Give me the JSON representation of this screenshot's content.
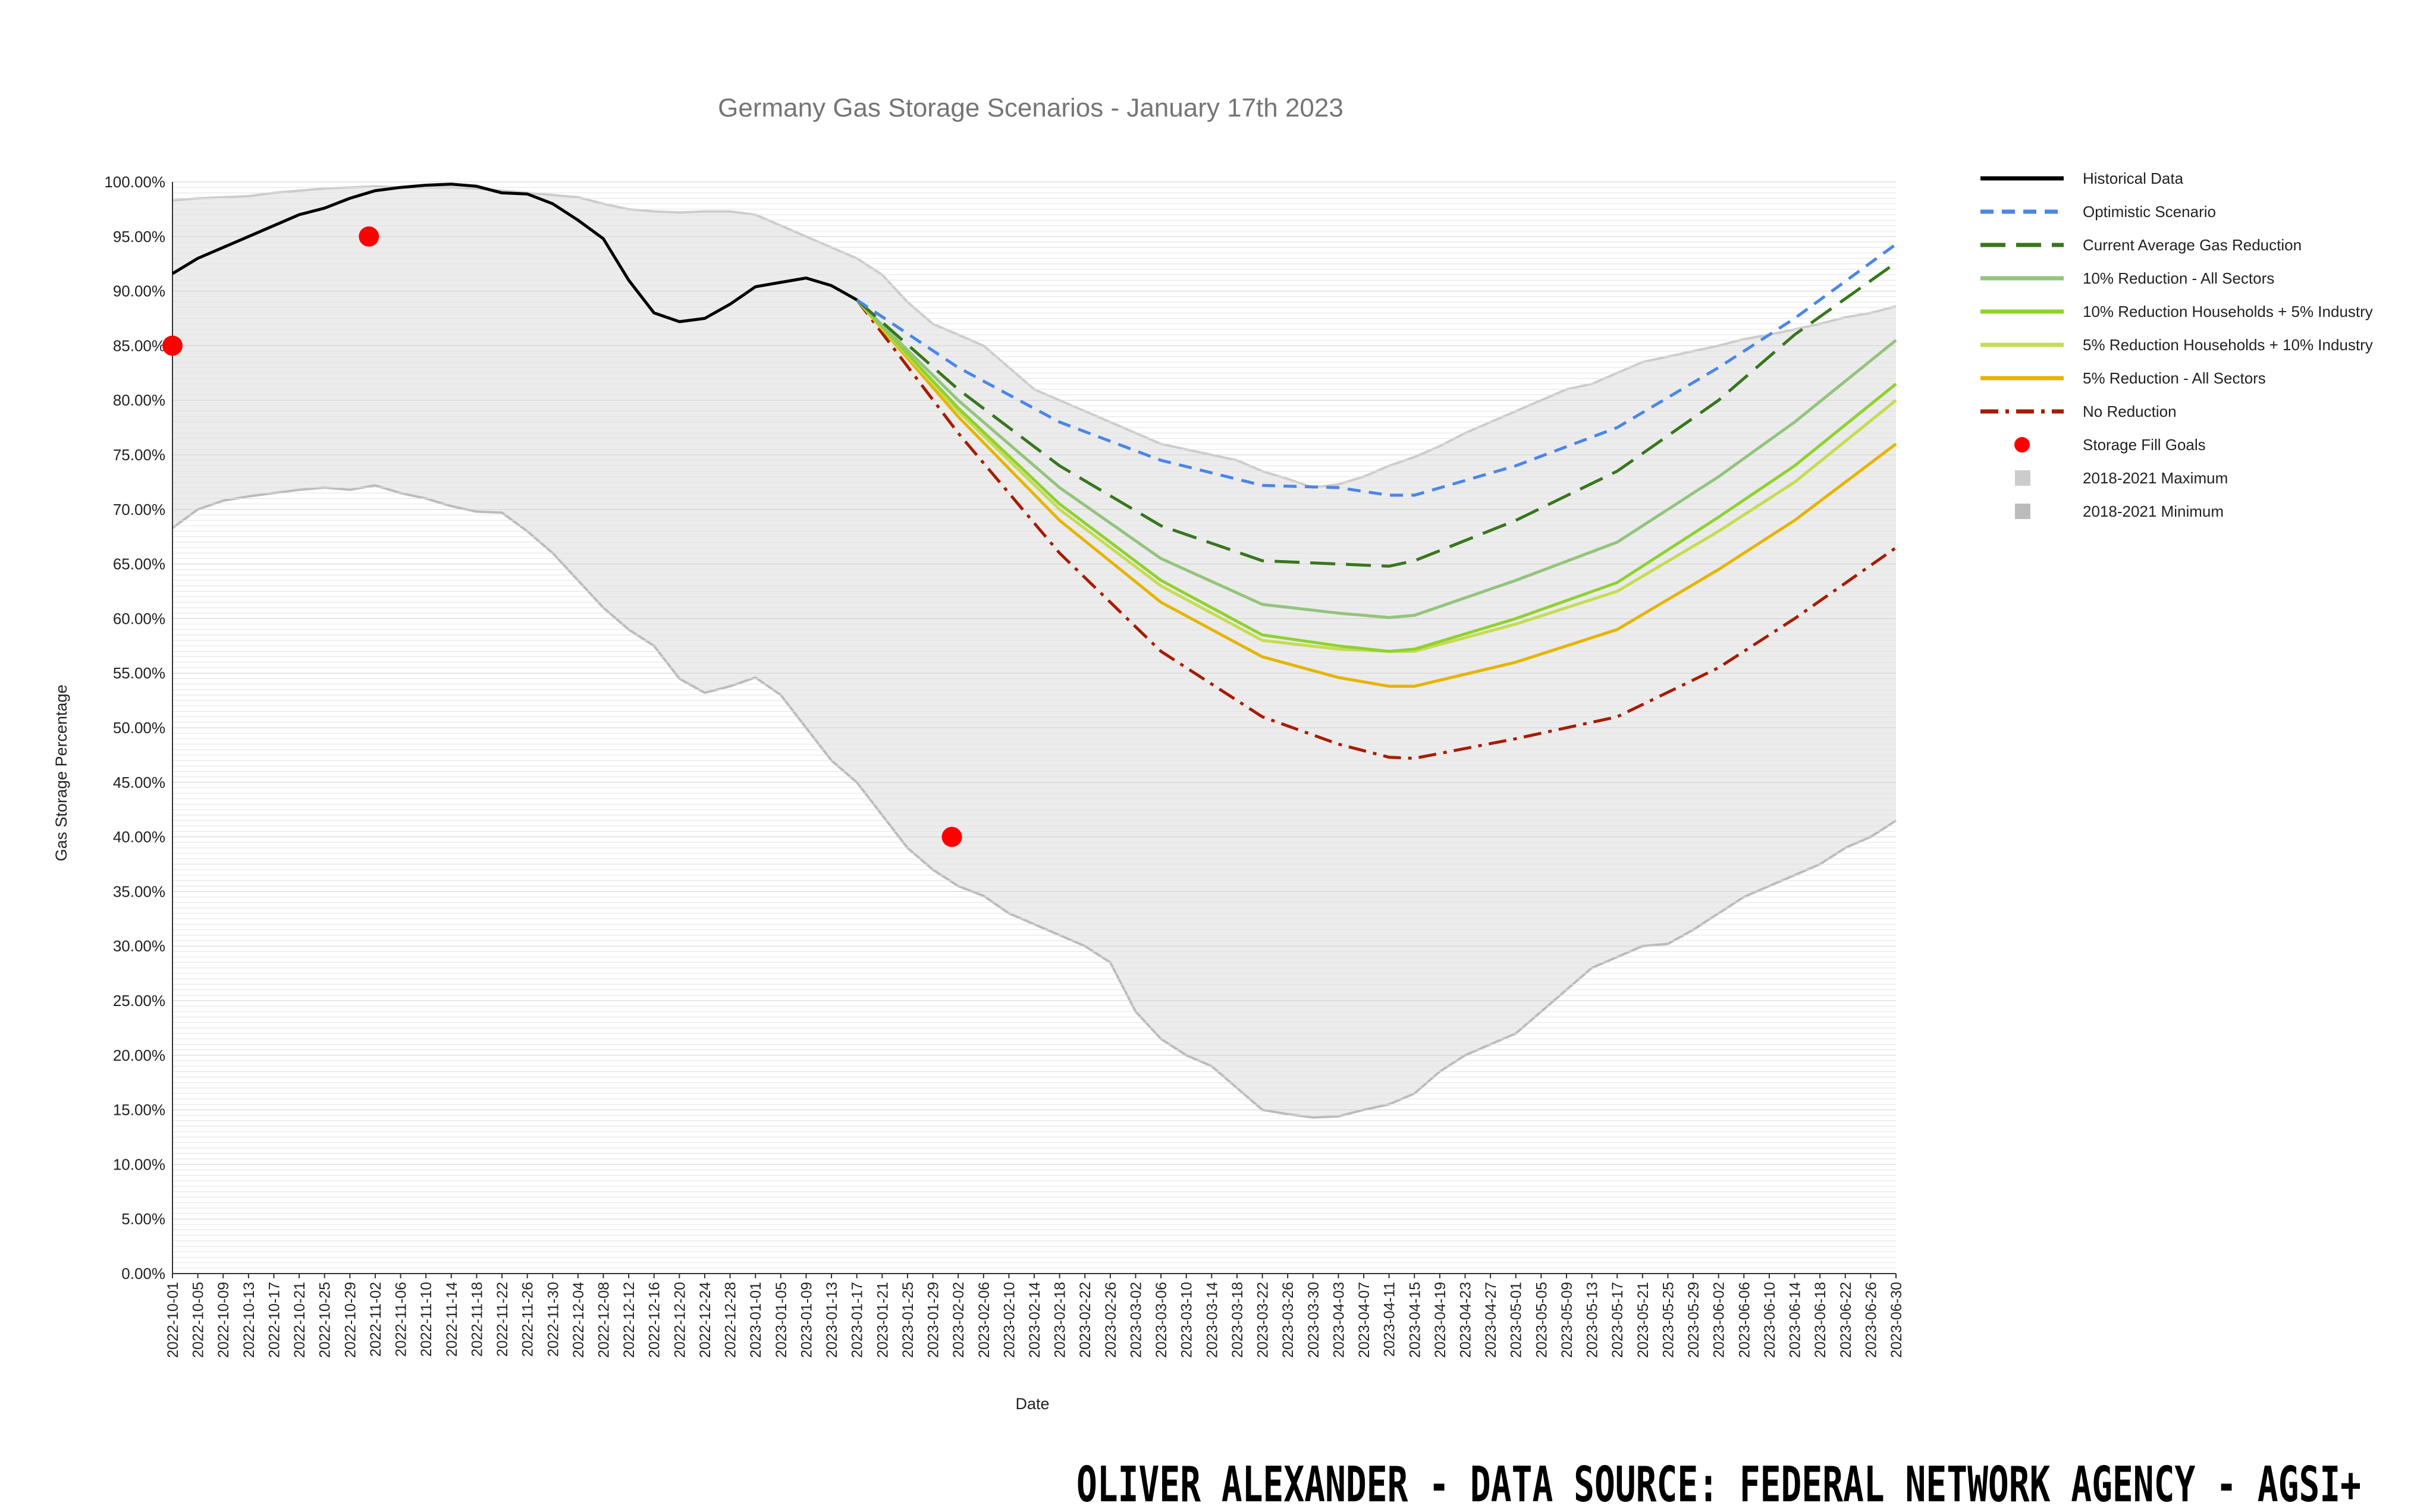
{
  "chart_data": {
    "type": "line",
    "title": "Germany Gas Storage Scenarios - January 17th 2023",
    "xlabel": "Date",
    "ylabel": "Gas Storage Percentage",
    "ylim": [
      0,
      100
    ],
    "yticks": [
      "0.00%",
      "5.00%",
      "10.00%",
      "15.00%",
      "20.00%",
      "25.00%",
      "30.00%",
      "35.00%",
      "40.00%",
      "45.00%",
      "50.00%",
      "55.00%",
      "60.00%",
      "65.00%",
      "70.00%",
      "75.00%",
      "80.00%",
      "85.00%",
      "90.00%",
      "95.00%",
      "100.00%"
    ],
    "xlim": [
      "2022-10-01",
      "2023-06-30"
    ],
    "xticks": [
      "2022-10-01",
      "2022-10-05",
      "2022-10-09",
      "2022-10-13",
      "2022-10-17",
      "2022-10-21",
      "2022-10-25",
      "2022-10-29",
      "2022-11-02",
      "2022-11-06",
      "2022-11-10",
      "2022-11-14",
      "2022-11-18",
      "2022-11-22",
      "2022-11-26",
      "2022-11-30",
      "2022-12-04",
      "2022-12-08",
      "2022-12-12",
      "2022-12-16",
      "2022-12-20",
      "2022-12-24",
      "2022-12-28",
      "2023-01-01",
      "2023-01-05",
      "2023-01-09",
      "2023-01-13",
      "2023-01-17",
      "2023-01-21",
      "2023-01-25",
      "2023-01-29",
      "2023-02-02",
      "2023-02-06",
      "2023-02-10",
      "2023-02-14",
      "2023-02-18",
      "2023-02-22",
      "2023-02-26",
      "2023-03-02",
      "2023-03-06",
      "2023-03-10",
      "2023-03-14",
      "2023-03-18",
      "2023-03-22",
      "2023-03-26",
      "2023-03-30",
      "2023-04-03",
      "2023-04-07",
      "2023-04-11",
      "2023-04-15",
      "2023-04-19",
      "2023-04-23",
      "2023-04-27",
      "2023-05-01",
      "2023-05-05",
      "2023-05-09",
      "2023-05-13",
      "2023-05-17",
      "2023-05-21",
      "2023-05-25",
      "2023-05-29",
      "2023-06-02",
      "2023-06-06",
      "2023-06-10",
      "2023-06-14",
      "2023-06-18",
      "2023-06-22",
      "2023-06-26",
      "2023-06-30"
    ],
    "grid": true,
    "legend_position": "right",
    "series": [
      {
        "name": "2018-2021 Maximum",
        "color": "#cccccc",
        "style": "band-upper",
        "x": [
          "2022-10-01",
          "2022-10-05",
          "2022-10-09",
          "2022-10-13",
          "2022-10-17",
          "2022-10-21",
          "2022-10-25",
          "2022-10-29",
          "2022-11-02",
          "2022-11-06",
          "2022-11-10",
          "2022-11-14",
          "2022-11-18",
          "2022-11-22",
          "2022-11-26",
          "2022-11-30",
          "2022-12-04",
          "2022-12-08",
          "2022-12-12",
          "2022-12-16",
          "2022-12-20",
          "2022-12-24",
          "2022-12-28",
          "2023-01-01",
          "2023-01-05",
          "2023-01-09",
          "2023-01-13",
          "2023-01-17",
          "2023-01-21",
          "2023-01-25",
          "2023-01-29",
          "2023-02-02",
          "2023-02-06",
          "2023-02-10",
          "2023-02-14",
          "2023-02-18",
          "2023-02-22",
          "2023-02-26",
          "2023-03-02",
          "2023-03-06",
          "2023-03-10",
          "2023-03-14",
          "2023-03-18",
          "2023-03-22",
          "2023-03-26",
          "2023-03-30",
          "2023-04-03",
          "2023-04-07",
          "2023-04-11",
          "2023-04-15",
          "2023-04-19",
          "2023-04-23",
          "2023-04-27",
          "2023-05-01",
          "2023-05-05",
          "2023-05-09",
          "2023-05-13",
          "2023-05-17",
          "2023-05-21",
          "2023-05-25",
          "2023-05-29",
          "2023-06-02",
          "2023-06-06",
          "2023-06-10",
          "2023-06-14",
          "2023-06-18",
          "2023-06-22",
          "2023-06-26",
          "2023-06-30"
        ],
        "y": [
          98.3,
          98.5,
          98.6,
          98.7,
          99.0,
          99.2,
          99.4,
          99.5,
          99.6,
          99.5,
          99.5,
          99.5,
          99.4,
          99.2,
          99.0,
          98.8,
          98.6,
          98.0,
          97.5,
          97.3,
          97.2,
          97.3,
          97.3,
          97.0,
          96.0,
          95.0,
          94.0,
          93.0,
          91.5,
          89.0,
          87.0,
          86.0,
          85.0,
          83.0,
          81.0,
          80.0,
          79.0,
          78.0,
          77.0,
          76.0,
          75.5,
          75.0,
          74.5,
          73.5,
          72.8,
          72.0,
          72.3,
          73.0,
          74.0,
          74.8,
          75.8,
          77.0,
          78.0,
          79.0,
          80.0,
          81.0,
          81.5,
          82.5,
          83.5,
          84.0,
          84.5,
          85.0,
          85.6,
          86.0,
          86.5,
          87.0,
          87.6,
          88.0,
          88.6
        ]
      },
      {
        "name": "2018-2021 Minimum",
        "color": "#bbbbbb",
        "style": "band-lower",
        "x": [
          "2022-10-01",
          "2022-10-05",
          "2022-10-09",
          "2022-10-13",
          "2022-10-17",
          "2022-10-21",
          "2022-10-25",
          "2022-10-29",
          "2022-11-02",
          "2022-11-06",
          "2022-11-10",
          "2022-11-14",
          "2022-11-18",
          "2022-11-22",
          "2022-11-26",
          "2022-11-30",
          "2022-12-04",
          "2022-12-08",
          "2022-12-12",
          "2022-12-16",
          "2022-12-20",
          "2022-12-24",
          "2022-12-28",
          "2023-01-01",
          "2023-01-05",
          "2023-01-09",
          "2023-01-13",
          "2023-01-17",
          "2023-01-21",
          "2023-01-25",
          "2023-01-29",
          "2023-02-02",
          "2023-02-06",
          "2023-02-10",
          "2023-02-14",
          "2023-02-18",
          "2023-02-22",
          "2023-02-26",
          "2023-03-02",
          "2023-03-06",
          "2023-03-10",
          "2023-03-14",
          "2023-03-18",
          "2023-03-22",
          "2023-03-26",
          "2023-03-30",
          "2023-04-03",
          "2023-04-07",
          "2023-04-11",
          "2023-04-15",
          "2023-04-19",
          "2023-04-23",
          "2023-04-27",
          "2023-05-01",
          "2023-05-05",
          "2023-05-09",
          "2023-05-13",
          "2023-05-17",
          "2023-05-21",
          "2023-05-25",
          "2023-05-29",
          "2023-06-02",
          "2023-06-06",
          "2023-06-10",
          "2023-06-14",
          "2023-06-18",
          "2023-06-22",
          "2023-06-26",
          "2023-06-30"
        ],
        "y": [
          68.3,
          70.0,
          70.8,
          71.2,
          71.5,
          71.8,
          72.0,
          71.8,
          72.2,
          71.5,
          71.0,
          70.3,
          69.8,
          69.7,
          68.0,
          66.0,
          63.5,
          61.0,
          59.0,
          57.5,
          54.5,
          53.2,
          53.8,
          54.6,
          53.0,
          50.0,
          47.0,
          45.0,
          42.0,
          39.0,
          37.0,
          35.5,
          34.6,
          33.0,
          32.0,
          31.0,
          30.0,
          28.5,
          24.0,
          21.5,
          20.0,
          19.0,
          17.0,
          15.0,
          14.6,
          14.3,
          14.4,
          15.0,
          15.5,
          16.5,
          18.5,
          20.0,
          21.0,
          22.0,
          24.0,
          26.0,
          28.0,
          29.0,
          30.0,
          30.2,
          31.5,
          33.0,
          34.5,
          35.5,
          36.5,
          37.5,
          39.0,
          40.0,
          41.5
        ]
      },
      {
        "name": "Historical Data",
        "color": "#000000",
        "style": "solid",
        "width": 5,
        "x": [
          "2022-10-01",
          "2022-10-05",
          "2022-10-09",
          "2022-10-13",
          "2022-10-17",
          "2022-10-21",
          "2022-10-25",
          "2022-10-29",
          "2022-11-02",
          "2022-11-06",
          "2022-11-10",
          "2022-11-14",
          "2022-11-18",
          "2022-11-22",
          "2022-11-26",
          "2022-11-30",
          "2022-12-04",
          "2022-12-08",
          "2022-12-12",
          "2022-12-16",
          "2022-12-20",
          "2022-12-24",
          "2022-12-28",
          "2023-01-01",
          "2023-01-05",
          "2023-01-09",
          "2023-01-13",
          "2023-01-17"
        ],
        "y": [
          91.6,
          93.0,
          94.0,
          95.0,
          96.0,
          97.0,
          97.6,
          98.5,
          99.2,
          99.5,
          99.7,
          99.8,
          99.6,
          99.0,
          98.9,
          98.0,
          96.5,
          94.8,
          91.0,
          88.0,
          87.2,
          87.5,
          88.8,
          90.4,
          90.8,
          91.2,
          90.5,
          89.2
        ]
      },
      {
        "name": "Optimistic Scenario",
        "color": "#4a86e8",
        "style": "dashed",
        "width": 5,
        "x": [
          "2023-01-17",
          "2023-02-02",
          "2023-02-18",
          "2023-03-06",
          "2023-03-22",
          "2023-04-03",
          "2023-04-11",
          "2023-04-15",
          "2023-05-01",
          "2023-05-17",
          "2023-06-02",
          "2023-06-14",
          "2023-06-30"
        ],
        "y": [
          89.2,
          83.0,
          78.0,
          74.5,
          72.2,
          72.0,
          71.3,
          71.3,
          74.0,
          77.5,
          83.0,
          87.5,
          94.3
        ]
      },
      {
        "name": "Current Average Gas Reduction",
        "color": "#38761d",
        "style": "longdash",
        "width": 5,
        "x": [
          "2023-01-17",
          "2023-02-02",
          "2023-02-18",
          "2023-03-06",
          "2023-03-22",
          "2023-04-03",
          "2023-04-11",
          "2023-04-15",
          "2023-05-01",
          "2023-05-17",
          "2023-06-02",
          "2023-06-14",
          "2023-06-30"
        ],
        "y": [
          89.2,
          81.0,
          74.0,
          68.5,
          65.3,
          65.0,
          64.8,
          65.3,
          69.0,
          73.5,
          80.0,
          86.0,
          92.6
        ]
      },
      {
        "name": "10% Reduction - All Sectors",
        "color": "#93c47d",
        "style": "solid",
        "width": 5,
        "x": [
          "2023-01-17",
          "2023-02-02",
          "2023-02-18",
          "2023-03-06",
          "2023-03-22",
          "2023-04-03",
          "2023-04-11",
          "2023-04-15",
          "2023-05-01",
          "2023-05-17",
          "2023-06-02",
          "2023-06-14",
          "2023-06-30"
        ],
        "y": [
          89.2,
          80.0,
          72.0,
          65.5,
          61.3,
          60.5,
          60.1,
          60.3,
          63.5,
          67.0,
          73.0,
          78.0,
          85.5
        ]
      },
      {
        "name": "10% Reduction Households + 5% Industry",
        "color": "#8fd130",
        "style": "solid",
        "width": 5,
        "x": [
          "2023-01-17",
          "2023-02-02",
          "2023-02-18",
          "2023-03-06",
          "2023-03-22",
          "2023-04-03",
          "2023-04-11",
          "2023-04-15",
          "2023-05-01",
          "2023-05-17",
          "2023-06-02",
          "2023-06-14",
          "2023-06-30"
        ],
        "y": [
          89.2,
          79.3,
          70.5,
          63.5,
          58.5,
          57.5,
          57.0,
          57.2,
          60.0,
          63.3,
          69.3,
          74.0,
          81.5
        ]
      },
      {
        "name": "5% Reduction Households + 10% Industry",
        "color": "#c5dc51",
        "style": "solid",
        "width": 5,
        "x": [
          "2023-01-17",
          "2023-02-02",
          "2023-02-18",
          "2023-03-06",
          "2023-03-22",
          "2023-04-03",
          "2023-04-11",
          "2023-04-15",
          "2023-05-01",
          "2023-05-17",
          "2023-06-02",
          "2023-06-14",
          "2023-06-30"
        ],
        "y": [
          89.2,
          79.0,
          70.0,
          63.0,
          58.0,
          57.2,
          57.0,
          57.0,
          59.5,
          62.5,
          68.0,
          72.5,
          80.0
        ]
      },
      {
        "name": "5% Reduction - All Sectors",
        "color": "#e6b400",
        "style": "solid",
        "width": 5,
        "x": [
          "2023-01-17",
          "2023-02-02",
          "2023-02-18",
          "2023-03-06",
          "2023-03-22",
          "2023-04-03",
          "2023-04-11",
          "2023-04-15",
          "2023-05-01",
          "2023-05-17",
          "2023-06-02",
          "2023-06-14",
          "2023-06-30"
        ],
        "y": [
          89.2,
          78.5,
          69.0,
          61.5,
          56.5,
          54.6,
          53.8,
          53.8,
          56.0,
          59.0,
          64.5,
          69.0,
          76.0
        ]
      },
      {
        "name": "No Reduction",
        "color": "#a61c00",
        "style": "dashdot",
        "width": 5,
        "x": [
          "2023-01-17",
          "2023-02-02",
          "2023-02-18",
          "2023-03-06",
          "2023-03-22",
          "2023-04-03",
          "2023-04-11",
          "2023-04-15",
          "2023-05-01",
          "2023-05-17",
          "2023-06-02",
          "2023-06-14",
          "2023-06-30"
        ],
        "y": [
          89.2,
          77.0,
          66.0,
          57.0,
          51.0,
          48.5,
          47.3,
          47.2,
          49.0,
          51.0,
          55.5,
          60.0,
          66.5
        ]
      },
      {
        "name": "Storage Fill Goals",
        "color": "#ff0000",
        "style": "points",
        "x": [
          "2022-10-01",
          "2022-11-01",
          "2023-02-01"
        ],
        "y": [
          85,
          95,
          40
        ]
      }
    ],
    "legend": [
      {
        "name": "Historical Data",
        "style": "solid",
        "color": "#000000"
      },
      {
        "name": "Optimistic Scenario",
        "style": "dashed",
        "color": "#4a86e8"
      },
      {
        "name": "Current Average Gas Reduction",
        "style": "longdash",
        "color": "#38761d"
      },
      {
        "name": "10% Reduction - All Sectors",
        "style": "solid",
        "color": "#93c47d"
      },
      {
        "name": "10% Reduction Households + 5% Industry",
        "style": "solid",
        "color": "#8fd130"
      },
      {
        "name": "5% Reduction Households + 10% Industry",
        "style": "solid",
        "color": "#c5dc51"
      },
      {
        "name": "5% Reduction - All Sectors",
        "style": "solid",
        "color": "#e6b400"
      },
      {
        "name": "No Reduction",
        "style": "dashdot",
        "color": "#a61c00"
      },
      {
        "name": "Storage Fill Goals",
        "style": "dot",
        "color": "#ff0000"
      },
      {
        "name": "2018-2021 Maximum",
        "style": "square",
        "color": "#cccccc"
      },
      {
        "name": "2018-2021 Minimum",
        "style": "square",
        "color": "#bbbbbb"
      }
    ]
  },
  "footer": {
    "credit": "OLIVER ALEXANDER - DATA SOURCE:  FEDERAL NETWORK AGENCY - AGSI+"
  }
}
